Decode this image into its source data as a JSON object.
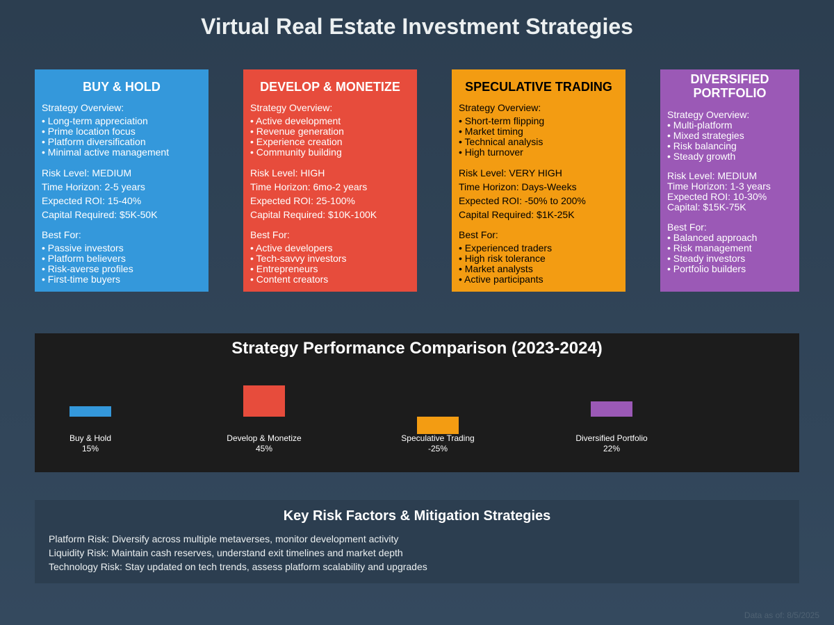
{
  "page": {
    "title": "Virtual Real Estate Investment Strategies"
  },
  "strategies": [
    {
      "title": "BUY & HOLD",
      "color": "#3498db",
      "overview_label": "Strategy Overview:",
      "overview": [
        "• Long-term appreciation",
        "• Prime location focus",
        "• Platform diversification",
        "• Minimal active management"
      ],
      "metrics": [
        "Risk Level: MEDIUM",
        "Time Horizon: 2-5 years",
        "Expected ROI: 15-40%",
        "Capital Required: $5K-50K"
      ],
      "best_for_label": "Best For:",
      "best_for": [
        "• Passive investors",
        "• Platform believers",
        "• Risk-averse profiles",
        "• First-time buyers"
      ]
    },
    {
      "title": "DEVELOP & MONETIZE",
      "color": "#e74c3c",
      "overview_label": "Strategy Overview:",
      "overview": [
        "• Active development",
        "• Revenue generation",
        "• Experience creation",
        "• Community building"
      ],
      "metrics": [
        "Risk Level: HIGH",
        "Time Horizon: 6mo-2 years",
        "Expected ROI: 25-100%",
        "Capital Required: $10K-100K"
      ],
      "best_for_label": "Best For:",
      "best_for": [
        "• Active developers",
        "• Tech-savvy investors",
        "• Entrepreneurs",
        "• Content creators"
      ]
    },
    {
      "title": "SPECULATIVE TRADING",
      "color": "#f39c12",
      "overview_label": "Strategy Overview:",
      "overview": [
        "• Short-term flipping",
        "• Market timing",
        "• Technical analysis",
        "• High turnover"
      ],
      "metrics": [
        "Risk Level: VERY HIGH",
        "Time Horizon: Days-Weeks",
        "Expected ROI: -50% to 200%",
        "Capital Required: $1K-25K"
      ],
      "best_for_label": "Best For:",
      "best_for": [
        "• Experienced traders",
        "• High risk tolerance",
        "• Market analysts",
        "• Active participants"
      ]
    },
    {
      "title": "DIVERSIFIED PORTFOLIO",
      "color": "#9b59b6",
      "overview_label": "Strategy Overview:",
      "overview": [
        "• Multi-platform",
        "• Mixed strategies",
        "• Risk balancing",
        "• Steady growth"
      ],
      "metrics": [
        "Risk Level: MEDIUM",
        "Time Horizon: 1-3 years",
        "Expected ROI: 10-30%",
        "Capital: $15K-75K"
      ],
      "best_for_label": "Best For:",
      "best_for": [
        "• Balanced approach",
        "• Risk management",
        "• Steady investors",
        "• Portfolio builders"
      ]
    }
  ],
  "chart_data": {
    "type": "bar",
    "title": "Strategy Performance Comparison (2023-2024)",
    "categories": [
      "Buy & Hold",
      "Develop & Monetize",
      "Speculative Trading",
      "Diversified Portfolio"
    ],
    "values": [
      15,
      45,
      -25,
      22
    ],
    "value_labels": [
      "15%",
      "45%",
      "-25%",
      "22%"
    ],
    "colors": [
      "#3498db",
      "#e74c3c",
      "#f39c12",
      "#9b59b6"
    ],
    "grid": false,
    "legend": false
  },
  "risk": {
    "title": "Key Risk Factors & Mitigation Strategies",
    "lines": [
      "Platform Risk: Diversify across multiple metaverses, monitor development activity",
      "Liquidity Risk: Maintain cash reserves, understand exit timelines and market depth",
      "Technology Risk: Stay updated on tech trends, assess platform scalability and upgrades"
    ]
  },
  "footer": "Data as of: 8/5/2025"
}
